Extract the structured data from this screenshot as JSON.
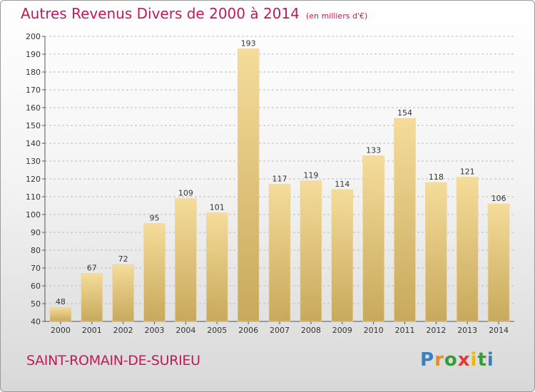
{
  "header": {
    "title": "Autres Revenus Divers de 2000 à 2014",
    "unit": "(en milliers d'€)"
  },
  "footer": {
    "town": "SAINT-ROMAIN-DE-SURIEU",
    "logo": "Proxiti"
  },
  "colors": {
    "accent": "#c2185b",
    "bar_light": "#f5dc9a",
    "bar_dark": "#c8a95c",
    "grid": "#bdbdbd"
  },
  "chart_data": {
    "type": "bar",
    "title": "Autres Revenus Divers de 2000 à 2014",
    "xlabel": "",
    "ylabel": "",
    "categories": [
      "2000",
      "2001",
      "2002",
      "2003",
      "2004",
      "2005",
      "2006",
      "2007",
      "2008",
      "2009",
      "2010",
      "2011",
      "2012",
      "2013",
      "2014"
    ],
    "values": [
      48,
      67,
      72,
      95,
      109,
      101,
      193,
      117,
      119,
      114,
      133,
      154,
      118,
      121,
      106
    ],
    "ylim": [
      40,
      200
    ],
    "yticks": [
      40,
      50,
      60,
      70,
      80,
      90,
      100,
      110,
      120,
      130,
      140,
      150,
      160,
      170,
      180,
      190,
      200
    ],
    "grid": true,
    "data_labels": true
  }
}
